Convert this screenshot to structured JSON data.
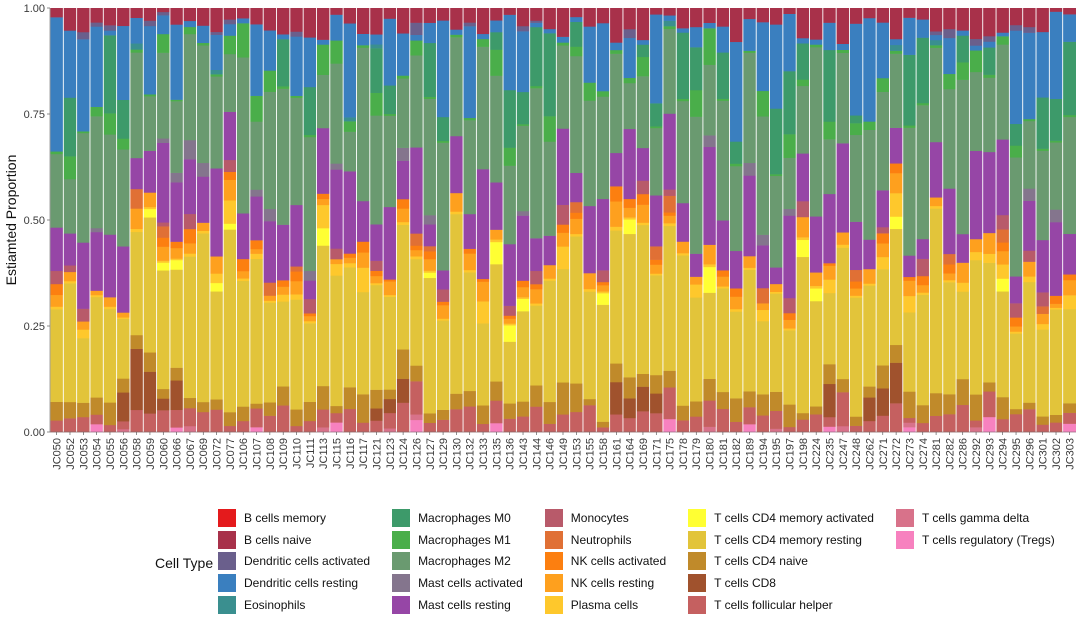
{
  "chart_data": {
    "type": "stacked-bar",
    "ylabel": "Estiamted Proportion",
    "xlabel": "",
    "ylim": [
      0,
      1
    ],
    "yticks": [
      "0.00",
      "0.25",
      "0.50",
      "0.75",
      "1.00"
    ],
    "legend_title": "Cell Type",
    "legend_position": "bottom",
    "categories": [
      "JC050",
      "JC052",
      "JC053",
      "JC054",
      "JC055",
      "JC056",
      "JC058",
      "JC059",
      "JC060",
      "JC066",
      "JC067",
      "JC069",
      "JC072",
      "JC077",
      "JC106",
      "JC107",
      "JC108",
      "JC109",
      "JC110",
      "JC111",
      "JC113",
      "JC115",
      "JC116",
      "JC117",
      "JC121",
      "JC123",
      "JC124",
      "JC126",
      "JC127",
      "JC129",
      "JC130",
      "JC132",
      "JC133",
      "JC135",
      "JC136",
      "JC143",
      "JC144",
      "JC146",
      "JC149",
      "JC153",
      "JC155",
      "JC158",
      "JC161",
      "JC164",
      "JC169",
      "JC171",
      "JC175",
      "JC178",
      "JC179",
      "JC180",
      "JC181",
      "JC182",
      "JC189",
      "JC194",
      "JC195",
      "JC197",
      "JC198",
      "JC224",
      "JC235",
      "JC247",
      "JC248",
      "JC262",
      "JC271",
      "JC272",
      "JC273",
      "JC274",
      "JC281",
      "JC282",
      "JC286",
      "JC292",
      "JC293",
      "JC294",
      "JC295",
      "JC296",
      "JC301",
      "JC302",
      "JC303"
    ],
    "series": [
      {
        "name": "B cells memory",
        "color": "#e41a1c"
      },
      {
        "name": "B cells naive",
        "color": "#a8314a"
      },
      {
        "name": "Dendritic cells activated",
        "color": "#6a5f8c"
      },
      {
        "name": "Dendritic cells resting",
        "color": "#3a7fbf"
      },
      {
        "name": "Eosinophils",
        "color": "#3a8f8f"
      },
      {
        "name": "Macrophages M0",
        "color": "#3d9a6a"
      },
      {
        "name": "Macrophages M1",
        "color": "#4aae4a"
      },
      {
        "name": "Macrophages M2",
        "color": "#6a9a70"
      },
      {
        "name": "Mast cells activated",
        "color": "#84758d"
      },
      {
        "name": "Mast cells resting",
        "color": "#9646a6"
      },
      {
        "name": "Monocytes",
        "color": "#b85a6a"
      },
      {
        "name": "Neutrophils",
        "color": "#e07035"
      },
      {
        "name": "NK cells activated",
        "color": "#fc7f10"
      },
      {
        "name": "NK cells resting",
        "color": "#fea01e"
      },
      {
        "name": "Plasma cells",
        "color": "#fec82c"
      },
      {
        "name": "T cells CD4 memory activated",
        "color": "#ffff33"
      },
      {
        "name": "T cells CD4 memory resting",
        "color": "#e2c43a"
      },
      {
        "name": "T cells CD4 naive",
        "color": "#c08a2a"
      },
      {
        "name": "T cells CD8",
        "color": "#a0522d"
      },
      {
        "name": "T cells follicular helper",
        "color": "#c56060"
      },
      {
        "name": "T cells gamma delta",
        "color": "#d8728a"
      },
      {
        "name": "T cells regulatory (Tregs)",
        "color": "#f781bf"
      }
    ]
  }
}
